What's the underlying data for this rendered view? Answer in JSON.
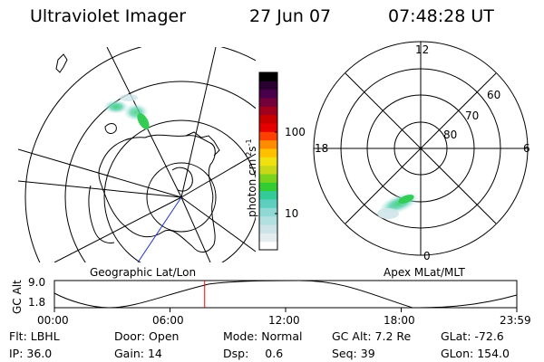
{
  "header": {
    "instrument": "Ultraviolet Imager",
    "date": "27 Jun 07",
    "time": "07:48:28 UT"
  },
  "colorbar": {
    "label": "photon cm",
    "exp1": "-2",
    "mid": "s",
    "exp2": "-1",
    "ticks": [
      "100",
      "10"
    ],
    "colors": [
      "#ffffff",
      "#e4ecef",
      "#cde3e8",
      "#b2dfe0",
      "#8fd8d4",
      "#5ecfbf",
      "#33cc99",
      "#33cc33",
      "#7ad21c",
      "#c8d818",
      "#f0e010",
      "#ffc000",
      "#ff8c00",
      "#ff4000",
      "#e60000",
      "#c80000",
      "#a0001c",
      "#74003a",
      "#48004c",
      "#2a0030",
      "#000000"
    ]
  },
  "geographic_panel": {
    "label": "Geographic Lat/Lon"
  },
  "apex_panel": {
    "label": "Apex MLat/MLT",
    "mlt_labels": {
      "top": "12",
      "left": "18",
      "right": "6",
      "bottom": "0"
    },
    "lat_labels": [
      "60",
      "70",
      "80"
    ]
  },
  "altitude_plot": {
    "ylabel": "GC Alt",
    "ymax": "9.0",
    "ymin": "1.8",
    "xticks": [
      "00:00",
      "06:00",
      "12:00",
      "18:00",
      "23:59"
    ],
    "current_time_fraction": 0.325,
    "line_color": "#ff0000"
  },
  "footer": {
    "row1": [
      {
        "k": "Flt:",
        "v": "LBHL"
      },
      {
        "k": "Door:",
        "v": "Open"
      },
      {
        "k": "Mode:",
        "v": "Normal"
      },
      {
        "k": "GC Alt:",
        "v": "7.2 Re"
      },
      {
        "k": "GLat:",
        "v": "-72.6"
      }
    ],
    "row2": [
      {
        "k": "IP:",
        "v": "36.0"
      },
      {
        "k": "Gain:",
        "v": "14"
      },
      {
        "k": "Dsp:",
        "v": "0.6"
      },
      {
        "k": "Seq:",
        "v": "39"
      },
      {
        "k": "GLon:",
        "v": "154.0"
      }
    ]
  }
}
